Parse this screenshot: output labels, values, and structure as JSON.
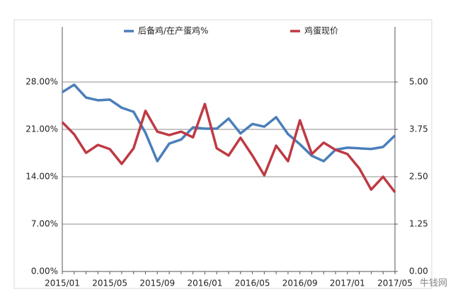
{
  "chart_data": {
    "type": "line",
    "categories": [
      "2015/01",
      null,
      null,
      null,
      "2015/05",
      null,
      null,
      null,
      "2015/09",
      null,
      null,
      null,
      "2016/01",
      null,
      null,
      null,
      "2016/05",
      null,
      null,
      null,
      "2016/09",
      null,
      null,
      null,
      "2017/01",
      null,
      null,
      null,
      "2017/05"
    ],
    "series": [
      {
        "name": "后备鸡/在产蛋鸡%",
        "color": "#4a7ebb",
        "axis": "y",
        "values": [
          26.5,
          27.6,
          25.7,
          25.3,
          25.4,
          24.2,
          23.6,
          20.5,
          16.3,
          18.9,
          19.5,
          21.3,
          21.1,
          21.1,
          22.6,
          20.4,
          21.8,
          21.4,
          22.8,
          20.3,
          18.8,
          17.1,
          16.3,
          18.0,
          18.3,
          18.2,
          18.1,
          18.4,
          20.1
        ]
      },
      {
        "name": "鸡蛋现价",
        "color": "#be3a43",
        "axis": "y2",
        "values": [
          3.94,
          3.62,
          3.13,
          3.34,
          3.23,
          2.84,
          3.25,
          4.24,
          3.69,
          3.6,
          3.69,
          3.54,
          4.42,
          3.25,
          3.06,
          3.53,
          3.06,
          2.54,
          3.32,
          2.91,
          3.99,
          3.1,
          3.4,
          3.21,
          3.1,
          2.72,
          2.16,
          2.5,
          2.09
        ]
      }
    ],
    "ylim": [
      0,
      28
    ],
    "yticks": [
      {
        "value": 0,
        "label": "0.00%"
      },
      {
        "value": 7,
        "label": "7.00%"
      },
      {
        "value": 14,
        "label": "14.00%"
      },
      {
        "value": 21,
        "label": "21.00%"
      },
      {
        "value": 28,
        "label": "28.00%"
      }
    ],
    "y2lim": [
      0,
      5
    ],
    "y2ticks": [
      {
        "value": 0,
        "label": "0.00"
      },
      1.25,
      {
        "value": 2.5,
        "label": "2.50"
      },
      3.75,
      {
        "value": 5,
        "label": "5.00"
      }
    ],
    "grid": true,
    "legend": "top",
    "watermark": "牛钱网"
  }
}
